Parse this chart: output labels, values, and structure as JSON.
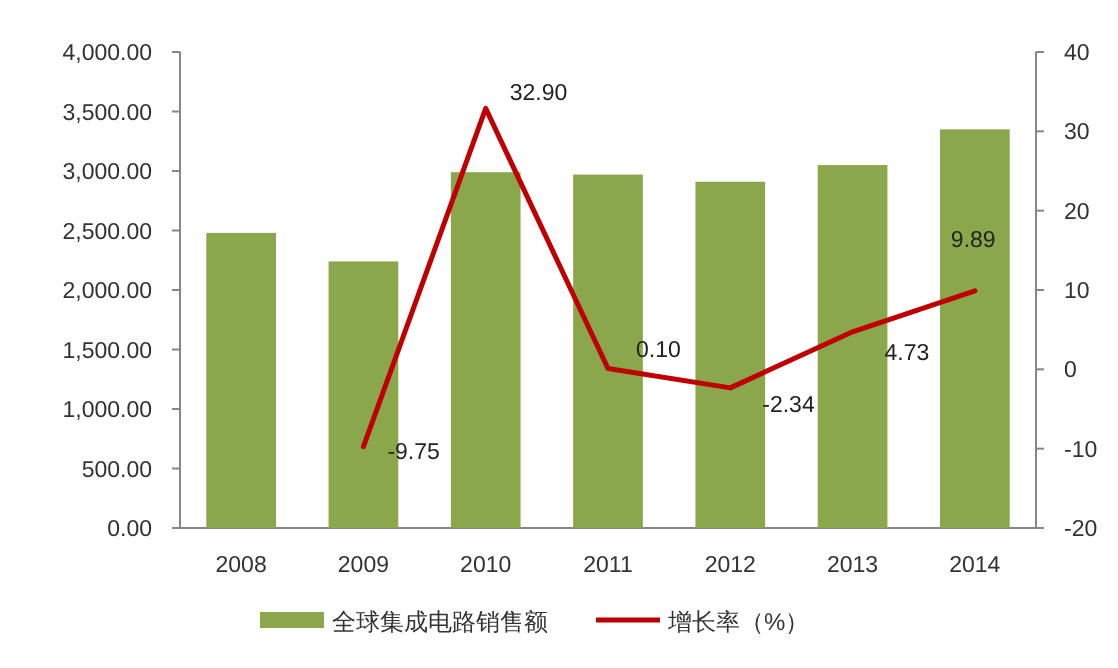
{
  "chart_data": {
    "type": "bar",
    "categories": [
      "2008",
      "2009",
      "2010",
      "2011",
      "2012",
      "2013",
      "2014"
    ],
    "series": [
      {
        "name": "全球集成电路销售额",
        "type": "bar",
        "color": "#8aa84b",
        "values": [
          2480,
          2240,
          2990,
          2970,
          2910,
          3050,
          3350
        ]
      },
      {
        "name": "增长率（%）",
        "type": "line",
        "axis": "y2",
        "color": "#c00000",
        "values": [
          null,
          -9.75,
          32.9,
          0.1,
          -2.34,
          4.73,
          9.89
        ],
        "value_labels": [
          null,
          "-9.75",
          "32.90",
          "0.10",
          "-2.34",
          "4.73",
          "9.89"
        ]
      }
    ],
    "ylim": [
      0,
      4000
    ],
    "yticks": [
      {
        "value": 0,
        "label": "0.00"
      },
      {
        "value": 500,
        "label": "500.00"
      },
      {
        "value": 1000,
        "label": "1,000.00"
      },
      {
        "value": 1500,
        "label": "1,500.00"
      },
      {
        "value": 2000,
        "label": "2,000.00"
      },
      {
        "value": 2500,
        "label": "2,500.00"
      },
      {
        "value": 3000,
        "label": "3,000.00"
      },
      {
        "value": 3500,
        "label": "3,500.00"
      },
      {
        "value": 4000,
        "label": "4,000.00"
      }
    ],
    "y2lim": [
      -20,
      40
    ],
    "y2ticks": [
      -20,
      -10,
      0,
      10,
      20,
      30,
      40
    ],
    "grid": false,
    "legend": "bottom"
  }
}
